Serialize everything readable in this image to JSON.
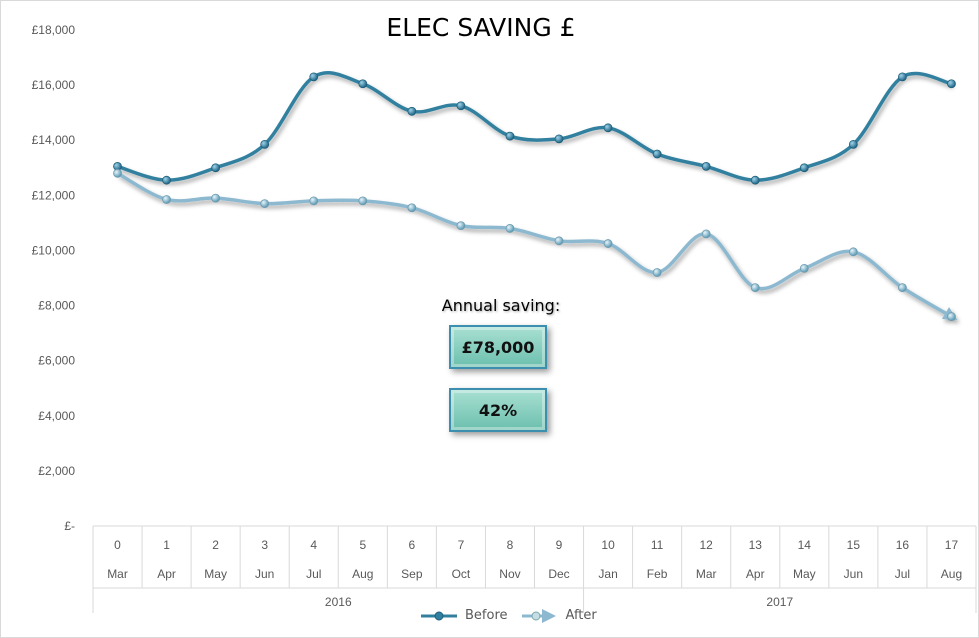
{
  "chart_data": {
    "type": "line",
    "title": "ELEC SAVING £",
    "categories": [
      "0",
      "1",
      "2",
      "3",
      "4",
      "5",
      "6",
      "7",
      "8",
      "9",
      "10",
      "11",
      "12",
      "13",
      "14",
      "15",
      "16",
      "17"
    ],
    "months": [
      "Mar",
      "Apr",
      "May",
      "Jun",
      "Jul",
      "Aug",
      "Sep",
      "Oct",
      "Nov",
      "Dec",
      "Jan",
      "Feb",
      "Mar",
      "Apr",
      "May",
      "Jun",
      "Jul",
      "Aug"
    ],
    "years": [
      {
        "label": "2016",
        "span": 10
      },
      {
        "label": "2017",
        "span": 8
      }
    ],
    "ylim": [
      0,
      18000
    ],
    "yticks": [
      "£-",
      "£2,000",
      "£4,000",
      "£6,000",
      "£8,000",
      "£10,000",
      "£12,000",
      "£14,000",
      "£16,000",
      "£18,000"
    ],
    "grid": false,
    "smooth": true,
    "legend_position": "bottom",
    "series": [
      {
        "name": "Before",
        "color": "#31809f",
        "values": [
          13050,
          12550,
          13000,
          13850,
          16300,
          16050,
          15050,
          15250,
          14150,
          14050,
          14450,
          13500,
          13050,
          12550,
          13000,
          13850,
          16300,
          16050
        ]
      },
      {
        "name": "After",
        "color": "#8cb9d0",
        "values": [
          12800,
          11850,
          11900,
          11700,
          11800,
          11800,
          11550,
          10900,
          10800,
          10350,
          10250,
          9200,
          10600,
          8650,
          9350,
          9950,
          8650,
          7600
        ]
      }
    ]
  },
  "annotation": {
    "label": "Annual saving:",
    "amount": "£78,000",
    "percent": "42%"
  }
}
